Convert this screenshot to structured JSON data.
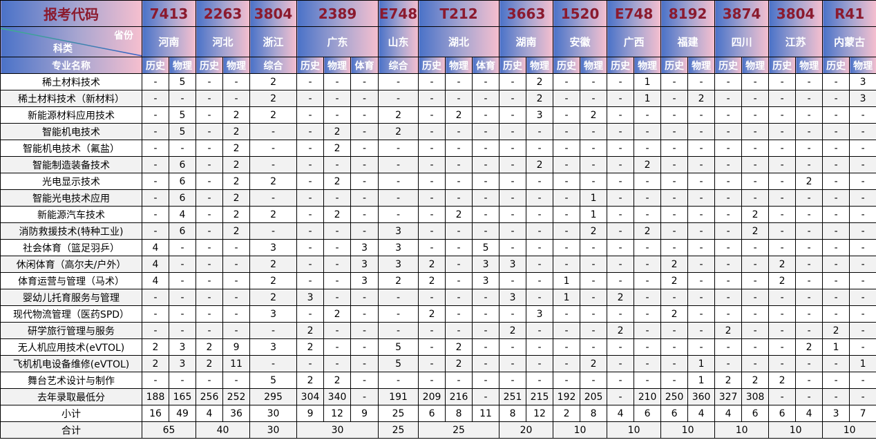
{
  "header": {
    "code_label": "报考代码",
    "province_label": "省份",
    "category_label": "科类",
    "major_label": "专业名称",
    "groups": [
      {
        "code": "7413",
        "province": "河南",
        "subjects": [
          "历史",
          "物理"
        ]
      },
      {
        "code": "2263",
        "province": "河北",
        "subjects": [
          "历史",
          "物理"
        ]
      },
      {
        "code": "3804",
        "province": "浙江",
        "subjects": [
          "综合"
        ]
      },
      {
        "code": "2389",
        "province": "广东",
        "subjects": [
          "历史",
          "物理",
          "体育"
        ]
      },
      {
        "code": "E748",
        "province": "山东",
        "subjects": [
          "综合"
        ]
      },
      {
        "code": "T212",
        "province": "湖北",
        "subjects": [
          "历史",
          "物理",
          "体育"
        ]
      },
      {
        "code": "3663",
        "province": "湖南",
        "subjects": [
          "历史",
          "物理"
        ]
      },
      {
        "code": "1520",
        "province": "安徽",
        "subjects": [
          "历史",
          "物理"
        ]
      },
      {
        "code": "E748",
        "province": "广西",
        "subjects": [
          "历史",
          "物理"
        ]
      },
      {
        "code": "8192",
        "province": "福建",
        "subjects": [
          "历史",
          "物理"
        ]
      },
      {
        "code": "3874",
        "province": "四川",
        "subjects": [
          "历史",
          "物理"
        ]
      },
      {
        "code": "3804",
        "province": "江苏",
        "subjects": [
          "历史",
          "物理"
        ]
      },
      {
        "code": "R41",
        "province": "内蒙古",
        "subjects": [
          "历史",
          "物理"
        ]
      }
    ]
  },
  "rows": [
    {
      "name": "稀土材料技术",
      "values": [
        "-",
        "5",
        "-",
        "-",
        "2",
        "-",
        "-",
        "-",
        "-",
        "-",
        "-",
        "-",
        "-",
        "2",
        "-",
        "-",
        "-",
        "1",
        "-",
        "-",
        "-",
        "-",
        "-",
        "-",
        "-",
        "3"
      ]
    },
    {
      "name": "稀土材料技术（新材料）",
      "values": [
        "-",
        "-",
        "-",
        "-",
        "2",
        "-",
        "-",
        "-",
        "-",
        "-",
        "-",
        "-",
        "-",
        "2",
        "-",
        "-",
        "-",
        "1",
        "-",
        "2",
        "-",
        "-",
        "-",
        "-",
        "-",
        "3"
      ]
    },
    {
      "name": "新能源材料应用技术",
      "values": [
        "-",
        "5",
        "-",
        "2",
        "2",
        "-",
        "-",
        "-",
        "2",
        "-",
        "2",
        "-",
        "-",
        "3",
        "-",
        "2",
        "-",
        "-",
        "-",
        "-",
        "-",
        "-",
        "-",
        "-",
        "-",
        "-"
      ]
    },
    {
      "name": "智能机电技术",
      "values": [
        "-",
        "5",
        "-",
        "2",
        "-",
        "-",
        "2",
        "-",
        "2",
        "-",
        "-",
        "-",
        "-",
        "-",
        "-",
        "-",
        "-",
        "-",
        "-",
        "-",
        "-",
        "-",
        "-",
        "-",
        "-",
        "-"
      ]
    },
    {
      "name": "智能机电技术（氟盐）",
      "values": [
        "-",
        "-",
        "-",
        "2",
        "-",
        "-",
        "2",
        "-",
        "-",
        "-",
        "-",
        "-",
        "-",
        "-",
        "-",
        "-",
        "-",
        "-",
        "-",
        "-",
        "-",
        "-",
        "-",
        "-",
        "-",
        "-"
      ]
    },
    {
      "name": "智能制造装备技术",
      "values": [
        "-",
        "6",
        "-",
        "2",
        "-",
        "-",
        "-",
        "-",
        "-",
        "-",
        "-",
        "-",
        "-",
        "2",
        "-",
        "-",
        "-",
        "2",
        "-",
        "-",
        "-",
        "-",
        "-",
        "-",
        "-",
        "-"
      ]
    },
    {
      "name": "光电显示技术",
      "values": [
        "-",
        "6",
        "-",
        "2",
        "2",
        "-",
        "2",
        "-",
        "-",
        "-",
        "-",
        "-",
        "-",
        "-",
        "-",
        "-",
        "-",
        "-",
        "-",
        "-",
        "-",
        "-",
        "-",
        "2",
        "-",
        "-"
      ]
    },
    {
      "name": "智能光电技术应用",
      "values": [
        "-",
        "6",
        "-",
        "2",
        "-",
        "-",
        "-",
        "-",
        "-",
        "-",
        "-",
        "-",
        "-",
        "-",
        "-",
        "1",
        "-",
        "-",
        "-",
        "-",
        "-",
        "-",
        "-",
        "-",
        "-",
        "-"
      ]
    },
    {
      "name": "新能源汽车技术",
      "values": [
        "-",
        "4",
        "-",
        "2",
        "2",
        "-",
        "2",
        "-",
        "-",
        "-",
        "2",
        "-",
        "-",
        "-",
        "-",
        "1",
        "-",
        "-",
        "-",
        "-",
        "-",
        "2",
        "-",
        "-",
        "-",
        "-"
      ]
    },
    {
      "name": "消防救援技术(特种工业)",
      "values": [
        "-",
        "6",
        "-",
        "2",
        "-",
        "-",
        "-",
        "-",
        "3",
        "-",
        "-",
        "-",
        "-",
        "-",
        "-",
        "2",
        "-",
        "2",
        "-",
        "-",
        "-",
        "2",
        "-",
        "-",
        "-",
        "-"
      ]
    },
    {
      "name": "社会体育（篮足羽乒）",
      "values": [
        "4",
        "-",
        "-",
        "-",
        "3",
        "-",
        "-",
        "3",
        "3",
        "-",
        "-",
        "5",
        "-",
        "-",
        "-",
        "-",
        "-",
        "-",
        "-",
        "-",
        "-",
        "-",
        "-",
        "-",
        "-",
        "-"
      ]
    },
    {
      "name": "休闲体育（高尔夫/户外）",
      "values": [
        "4",
        "-",
        "-",
        "-",
        "2",
        "-",
        "-",
        "3",
        "3",
        "2",
        "-",
        "3",
        "3",
        "-",
        "-",
        "-",
        "-",
        "-",
        "2",
        "-",
        "-",
        "-",
        "2",
        "-",
        "-",
        "-"
      ]
    },
    {
      "name": "体育运营与管理（马术）",
      "values": [
        "4",
        "-",
        "-",
        "-",
        "2",
        "-",
        "-",
        "3",
        "2",
        "2",
        "-",
        "3",
        "-",
        "-",
        "1",
        "-",
        "-",
        "-",
        "2",
        "-",
        "-",
        "-",
        "2",
        "-",
        "-",
        "-"
      ]
    },
    {
      "name": "婴幼儿托育服务与管理",
      "values": [
        "-",
        "-",
        "-",
        "-",
        "2",
        "3",
        "-",
        "-",
        "-",
        "-",
        "-",
        "-",
        "3",
        "-",
        "1",
        "-",
        "2",
        "-",
        "-",
        "-",
        "-",
        "-",
        "-",
        "-",
        "-",
        "-"
      ]
    },
    {
      "name": "现代物流管理（医药SPD）",
      "values": [
        "-",
        "-",
        "-",
        "-",
        "3",
        "-",
        "2",
        "-",
        "-",
        "2",
        "-",
        "-",
        "-",
        "3",
        "-",
        "-",
        "-",
        "-",
        "2",
        "-",
        "-",
        "-",
        "-",
        "-",
        "-",
        "-"
      ]
    },
    {
      "name": "研学旅行管理与服务",
      "values": [
        "-",
        "-",
        "-",
        "-",
        "-",
        "2",
        "-",
        "-",
        "-",
        "-",
        "-",
        "-",
        "2",
        "-",
        "-",
        "-",
        "2",
        "-",
        "-",
        "-",
        "2",
        "-",
        "-",
        "-",
        "2",
        "-"
      ]
    },
    {
      "name": "无人机应用技术(eVTOL)",
      "values": [
        "2",
        "3",
        "2",
        "9",
        "3",
        "2",
        "-",
        "-",
        "5",
        "-",
        "2",
        "-",
        "-",
        "-",
        "-",
        "-",
        "-",
        "-",
        "-",
        "-",
        "-",
        "-",
        "-",
        "2",
        "1",
        "-"
      ]
    },
    {
      "name": "飞机机电设备维修(eVTOL)",
      "values": [
        "2",
        "3",
        "2",
        "11",
        "-",
        "-",
        "-",
        "-",
        "5",
        "-",
        "2",
        "-",
        "-",
        "-",
        "-",
        "2",
        "-",
        "-",
        "-",
        "1",
        "-",
        "-",
        "-",
        "-",
        "-",
        "1"
      ]
    },
    {
      "name": "舞台艺术设计与制作",
      "values": [
        "-",
        "-",
        "-",
        "-",
        "5",
        "2",
        "2",
        "-",
        "-",
        "-",
        "-",
        "-",
        "-",
        "-",
        "-",
        "-",
        "-",
        "-",
        "-",
        "1",
        "2",
        "2",
        "2",
        "-",
        "-",
        "-"
      ]
    }
  ],
  "min_score": {
    "label": "去年录取最低分",
    "values": [
      "188",
      "165",
      "256",
      "252",
      "295",
      "304",
      "340",
      "-",
      "191",
      "209",
      "216",
      "-",
      "251",
      "215",
      "192",
      "205",
      "-",
      "210",
      "250",
      "360",
      "327",
      "308",
      "-",
      "-",
      "-",
      "-"
    ]
  },
  "subtotal": {
    "label": "小计",
    "values": [
      "16",
      "49",
      "4",
      "36",
      "30",
      "9",
      "12",
      "9",
      "25",
      "6",
      "8",
      "11",
      "8",
      "12",
      "2",
      "8",
      "4",
      "6",
      "6",
      "4",
      "4",
      "6",
      "6",
      "4",
      "3",
      "7"
    ]
  },
  "total": {
    "label": "合计",
    "values": [
      "65",
      "40",
      "30",
      "30",
      "25",
      "25",
      "20",
      "10",
      "10",
      "10",
      "10",
      "10",
      "10"
    ]
  }
}
